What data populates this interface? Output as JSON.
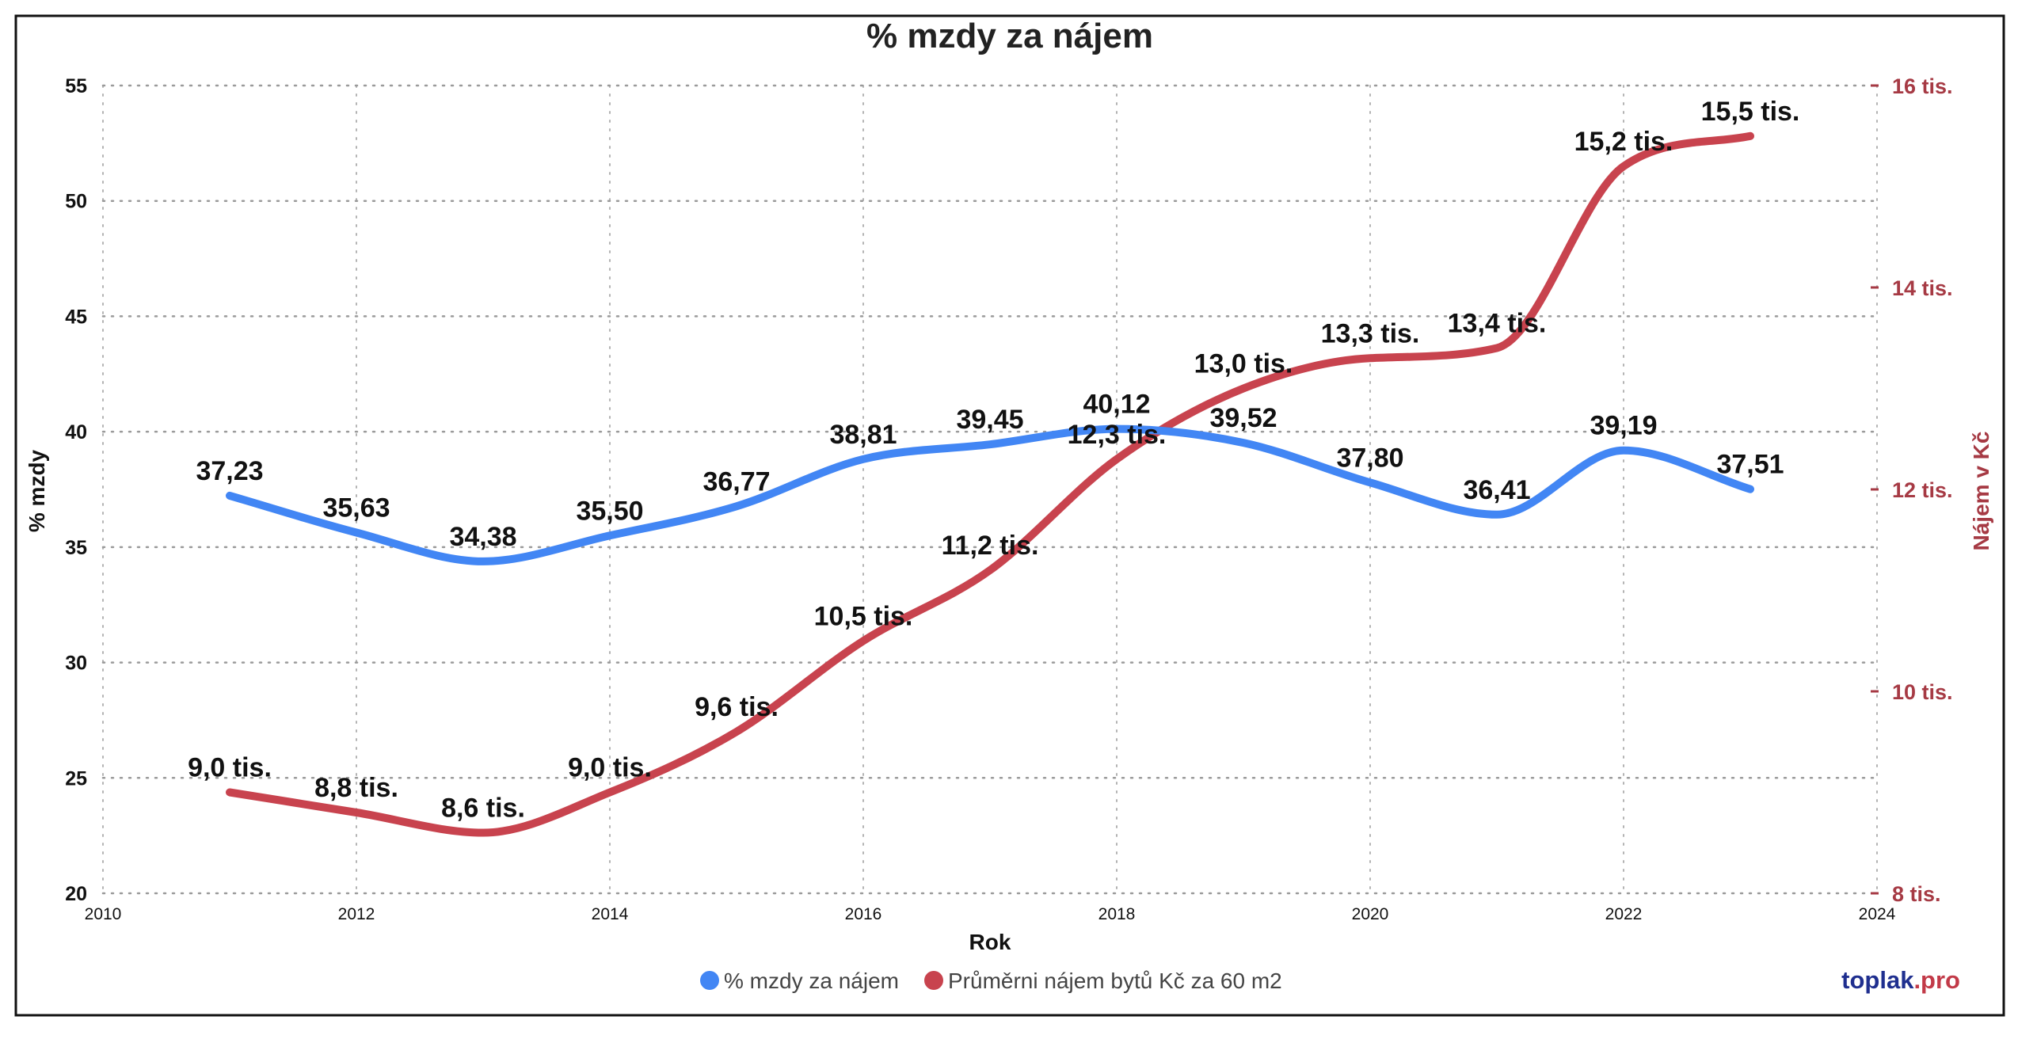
{
  "branding": {
    "part1": "toplak",
    "part2": ".pro"
  },
  "colors": {
    "series1": "#4286f4",
    "series2": "#c8434e",
    "right_axis": "#a63a44",
    "brand_dark": "#1f2f8f"
  },
  "chart_data": {
    "type": "line",
    "title": "% mzdy za nájem",
    "xlabel": "Rok",
    "ylabel": "% mzdy",
    "y2label": "Nájem v Kč",
    "xlim": [
      2010,
      2024
    ],
    "ylim": [
      20,
      55
    ],
    "y2lim": [
      8000,
      16000
    ],
    "x_ticks": [
      "2010",
      "2012",
      "2014",
      "2016",
      "2018",
      "2020",
      "2022",
      "2024"
    ],
    "y_ticks": [
      "20",
      "25",
      "30",
      "35",
      "40",
      "45",
      "50",
      "55"
    ],
    "y2_ticks": [
      {
        "value": 8000,
        "label": "8 tis."
      },
      {
        "value": 10000,
        "label": "10 tis."
      },
      {
        "value": 12000,
        "label": "12 tis."
      },
      {
        "value": 14000,
        "label": "14 tis."
      },
      {
        "value": 16000,
        "label": "16 tis."
      }
    ],
    "grid": true,
    "legend_position": "bottom",
    "x": [
      2011,
      2012,
      2013,
      2014,
      2015,
      2016,
      2017,
      2018,
      2019,
      2020,
      2021,
      2022,
      2023
    ],
    "series": [
      {
        "name": "% mzdy za nájem",
        "axis": "left",
        "color": "#4286f4",
        "values": [
          37.23,
          35.63,
          34.38,
          35.5,
          36.77,
          38.81,
          39.45,
          40.12,
          39.52,
          37.8,
          36.41,
          39.19,
          37.51
        ],
        "labels": [
          "37,23",
          "35,63",
          "34,38",
          "35,50",
          "36,77",
          "38,81",
          "39,45",
          "40,12",
          "39,52",
          "37,80",
          "36,41",
          "39,19",
          "37,51"
        ]
      },
      {
        "name": "Průměrni nájem bytů Kč za 60 m2",
        "axis": "right",
        "color": "#c8434e",
        "values": [
          9000,
          8800,
          8600,
          9000,
          9600,
          10500,
          11200,
          12300,
          13000,
          13300,
          13400,
          15200,
          15500
        ],
        "labels": [
          "9,0 tis.",
          "8,8 tis.",
          "8,6 tis.",
          "9,0 tis.",
          "9,6 tis.",
          "10,5 tis.",
          "11,2 tis.",
          "12,3 tis.",
          "13,0 tis.",
          "13,3 tis.",
          "13,4 tis.",
          "15,2 tis.",
          "15,5 tis."
        ]
      }
    ]
  }
}
